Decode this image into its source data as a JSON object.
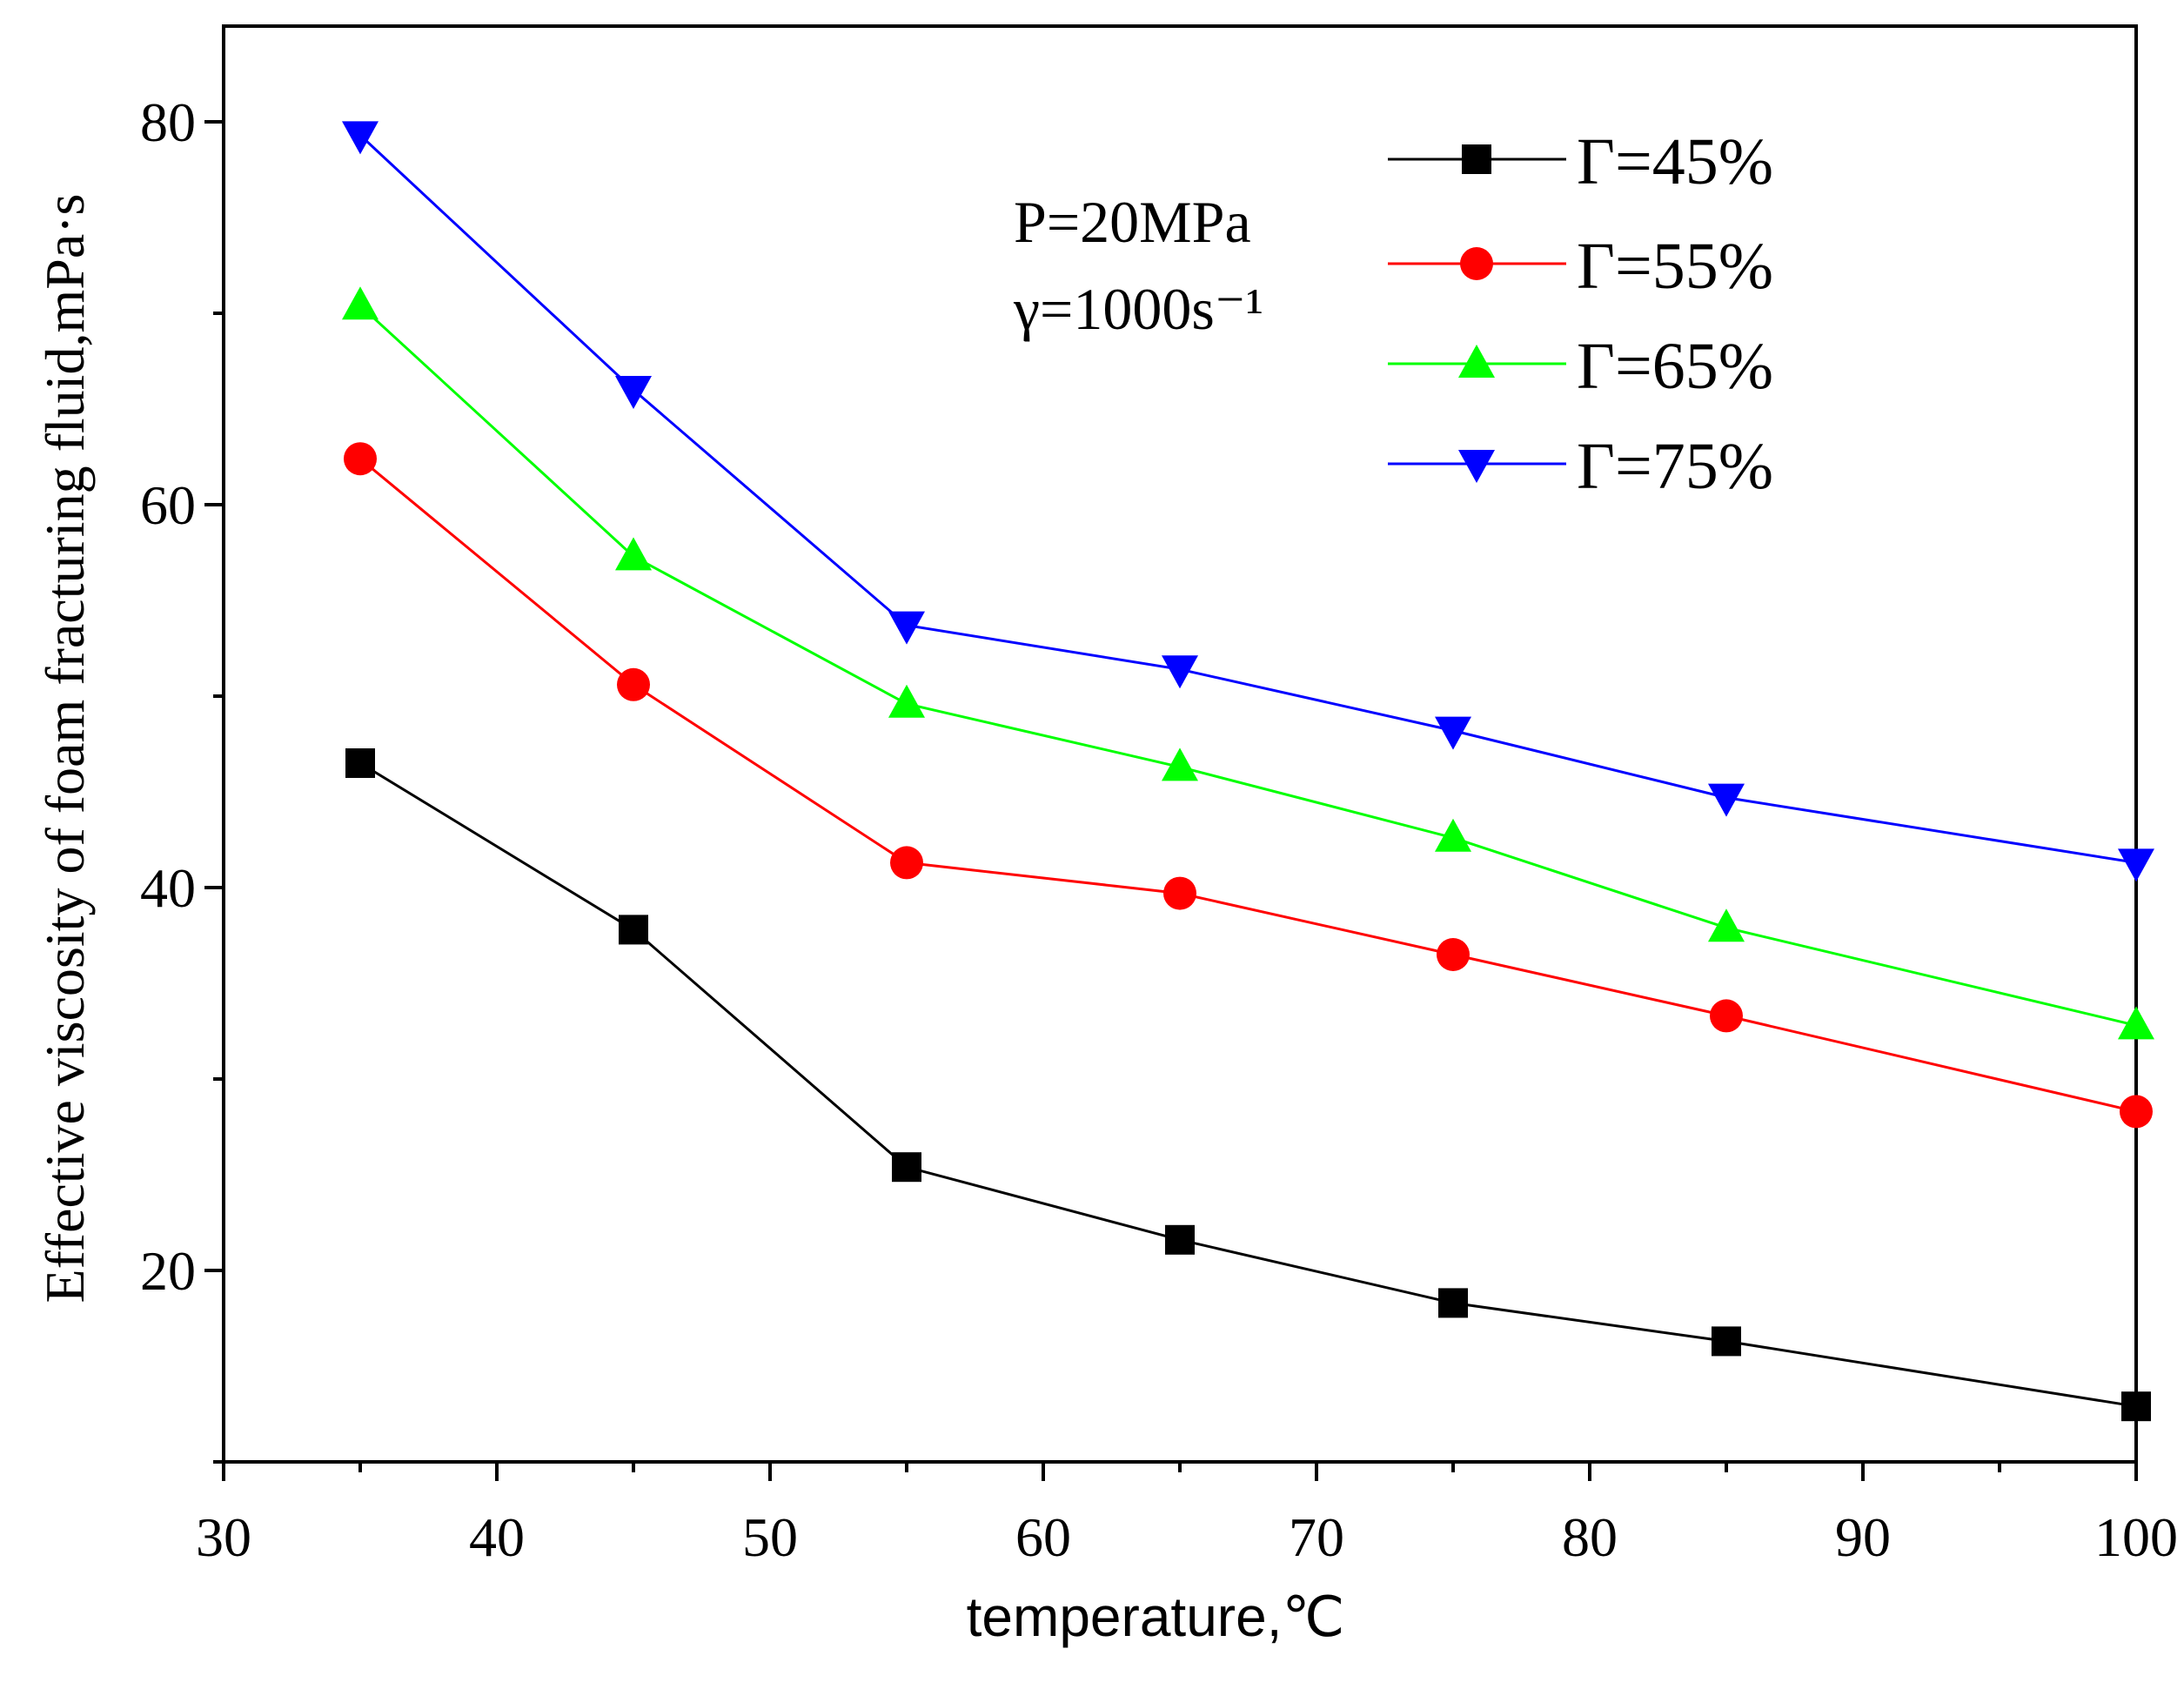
{
  "chart_data": {
    "type": "line",
    "title": "",
    "xlabel": "temperature,℃",
    "ylabel": "Effective viscosity of foam fracturing fluid,mPa·s",
    "xlim": [
      30,
      100
    ],
    "ylim": [
      10,
      85
    ],
    "x_ticks": [
      30,
      40,
      50,
      60,
      70,
      80,
      90,
      100
    ],
    "y_ticks": [
      20,
      40,
      60,
      80
    ],
    "x": [
      35,
      45,
      55,
      65,
      75,
      85,
      100
    ],
    "annotations": [
      "P=20MPa",
      "γ=1000s⁻¹"
    ],
    "legend_position": "top-right",
    "series": [
      {
        "name": "Γ=45%",
        "color": "#000000",
        "marker": "square",
        "values": [
          46.5,
          37.8,
          25.4,
          21.6,
          18.3,
          16.3,
          12.9
        ]
      },
      {
        "name": "Γ=55%",
        "color": "#ff0000",
        "marker": "circle",
        "values": [
          62.4,
          50.6,
          41.3,
          39.7,
          36.5,
          33.3,
          28.3
        ]
      },
      {
        "name": "Γ=65%",
        "color": "#00ff00",
        "marker": "triangle-up",
        "values": [
          70.4,
          57.3,
          49.6,
          46.3,
          42.6,
          37.9,
          32.8
        ]
      },
      {
        "name": "Γ=75%",
        "color": "#0000ff",
        "marker": "triangle-down",
        "values": [
          79.3,
          66.0,
          53.7,
          51.4,
          48.2,
          44.7,
          41.3
        ]
      }
    ]
  }
}
